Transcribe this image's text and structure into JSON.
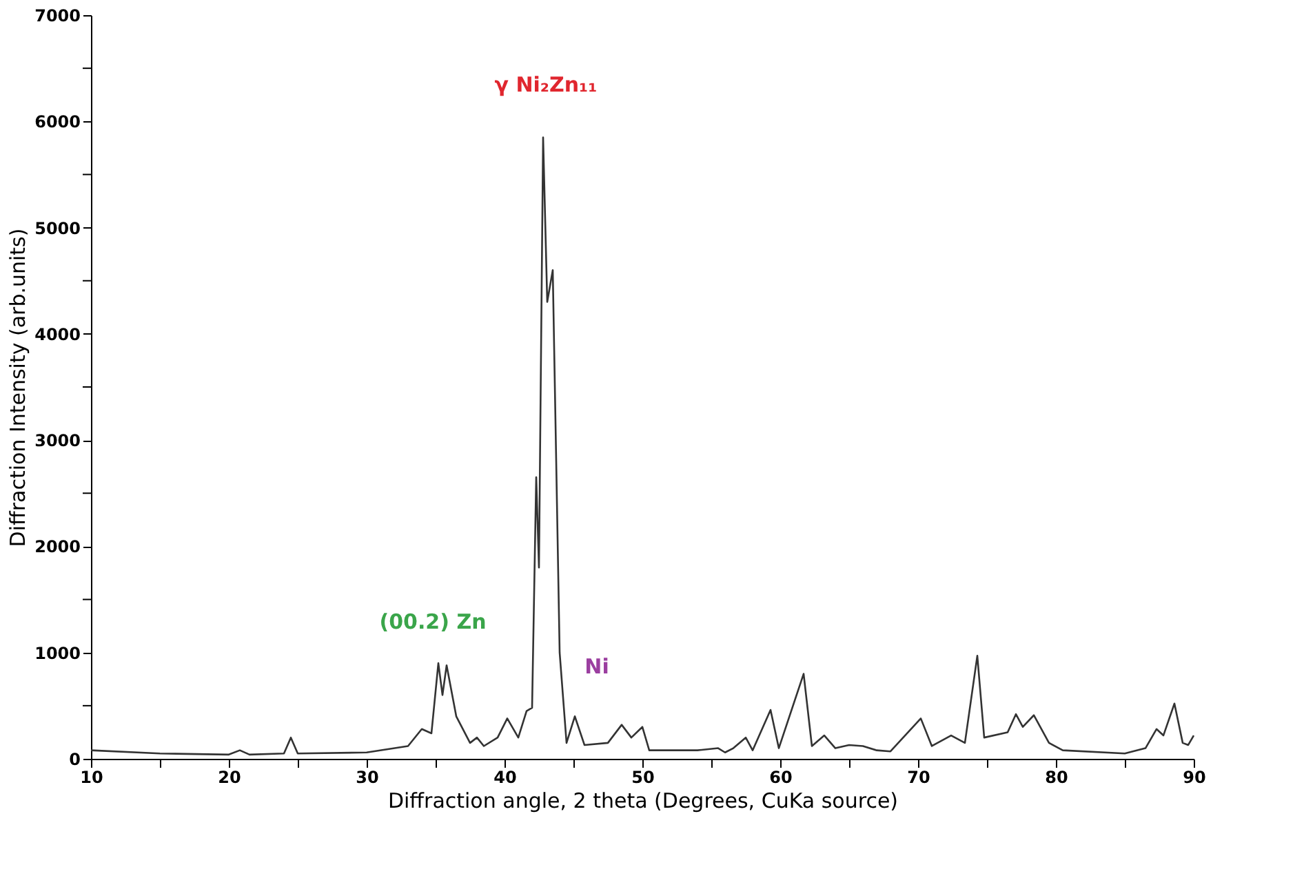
{
  "chart_data": {
    "type": "line",
    "xlabel": "Diffraction angle, 2 theta (Degrees, CuKa source)",
    "ylabel": "Diffraction Intensity (arb.units)",
    "x": [
      10,
      15,
      20,
      20.8,
      21.5,
      24,
      24.5,
      25,
      30,
      33,
      34,
      34.7,
      35.2,
      35.5,
      35.8,
      36.5,
      37.5,
      38,
      38.5,
      39.5,
      40.2,
      41,
      41.6,
      42,
      42.3,
      42.5,
      42.8,
      43.1,
      43.5,
      44,
      44.5,
      45.1,
      45.8,
      47.5,
      48.5,
      49.2,
      50,
      50.5,
      54,
      55.5,
      56,
      56.6,
      57.5,
      58,
      59.3,
      59.9,
      61.7,
      62.3,
      63.2,
      64,
      65,
      66,
      67,
      68,
      70.2,
      71,
      72.4,
      73.4,
      74.3,
      74.8,
      76.5,
      77.1,
      77.6,
      78.4,
      79.5,
      80.5,
      85,
      86.5,
      87.3,
      87.8,
      88.6,
      89.2,
      89.6,
      90
    ],
    "series": [
      {
        "color": "#333333",
        "values": [
          80,
          50,
          40,
          80,
          40,
          50,
          200,
          50,
          60,
          120,
          280,
          240,
          900,
          600,
          880,
          400,
          150,
          200,
          120,
          200,
          380,
          200,
          450,
          480,
          2650,
          1800,
          5850,
          4300,
          4600,
          1000,
          150,
          400,
          130,
          150,
          320,
          200,
          300,
          80,
          80,
          100,
          60,
          100,
          200,
          80,
          460,
          100,
          800,
          120,
          220,
          100,
          130,
          120,
          80,
          70,
          380,
          120,
          220,
          150,
          970,
          200,
          250,
          420,
          300,
          410,
          150,
          80,
          50,
          100,
          280,
          220,
          520,
          150,
          130,
          220
        ]
      }
    ],
    "xlim": [
      10,
      90
    ],
    "xticks": [
      10,
      {
        "value": 15,
        "label": null
      },
      20,
      {
        "value": 25,
        "label": null
      },
      30,
      {
        "value": 35,
        "label": null
      },
      40,
      {
        "value": 45,
        "label": null
      },
      50,
      {
        "value": 55,
        "label": null
      },
      60,
      {
        "value": 65,
        "label": null
      },
      70,
      {
        "value": 75,
        "label": null
      },
      80,
      {
        "value": 85,
        "label": null
      },
      90
    ],
    "ylim": [
      0,
      7000
    ],
    "yticks": [
      0,
      {
        "value": 500,
        "label": null
      },
      1000,
      {
        "value": 1500,
        "label": null
      },
      2000,
      {
        "value": 2500,
        "label": null
      },
      3000,
      {
        "value": 3500,
        "label": null
      },
      4000,
      {
        "value": 4500,
        "label": null
      },
      5000,
      {
        "value": 5500,
        "label": null
      },
      6000,
      {
        "value": 6500,
        "label": null
      },
      7000
    ],
    "annotations": [
      {
        "text": "γ Ni₂Zn₁₁",
        "x": 42.8,
        "y": 5850
      },
      {
        "text": "(00.2) Zn",
        "x": 35.2,
        "y": 900
      },
      {
        "text": "Ni",
        "x": 45.1,
        "y": 400
      }
    ],
    "grid": false,
    "marker": "none",
    "line_style": "solid"
  }
}
